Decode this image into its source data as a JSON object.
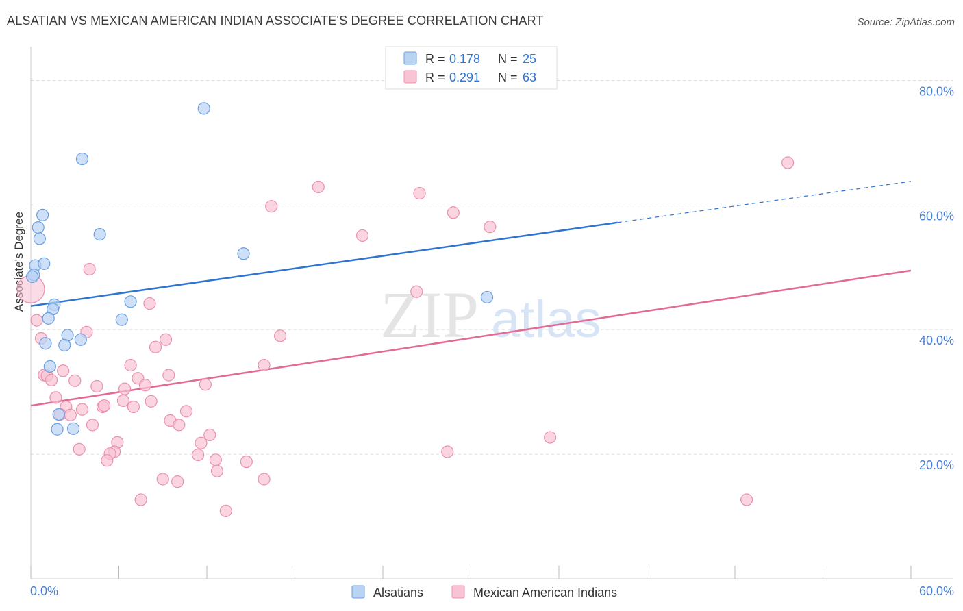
{
  "title": "ALSATIAN VS MEXICAN AMERICAN INDIAN ASSOCIATE'S DEGREE CORRELATION CHART",
  "source": "Source: ZipAtlas.com",
  "watermark": {
    "zip": "ZIP",
    "atlas": "atlas"
  },
  "colors": {
    "blue": "#2f74d0",
    "blue_fill": "#b9d3f3",
    "blue_stroke": "#6a9fe0",
    "pink": "#e26a94",
    "pink_fill": "#f8c3d3",
    "pink_stroke": "#eb8fb0",
    "grid": "#dddddd",
    "tick_label": "#4a7fd6"
  },
  "legend": {
    "row1": {
      "r_label": "R =",
      "r_value": "0.178",
      "n_label": "N =",
      "n_value": "25"
    },
    "row2": {
      "r_label": "R =",
      "r_value": "0.291",
      "n_label": "N =",
      "n_value": "63"
    }
  },
  "chart_data": {
    "type": "scatter",
    "title": "ALSATIAN VS MEXICAN AMERICAN INDIAN ASSOCIATE'S DEGREE CORRELATION CHART",
    "xlabel": "",
    "ylabel": "Associate's Degree",
    "xlim": [
      0,
      60
    ],
    "ylim": [
      0,
      85
    ],
    "x_tick_labels": [
      "0.0%",
      "60.0%"
    ],
    "y_ticks": [
      20,
      40,
      60,
      80
    ],
    "y_tick_labels": [
      "20.0%",
      "40.0%",
      "60.0%",
      "80.0%"
    ],
    "grid": true,
    "legend_position": "top-center",
    "series": [
      {
        "name": "Alsatians",
        "color": "#2f74d0",
        "r": 0.178,
        "n": 25,
        "trend": {
          "x0": 0,
          "y0": 43.8,
          "x1": 40,
          "y1": 57.2,
          "dash_to_x": 60,
          "dash_to_y": 63.8
        },
        "points": [
          [
            11.8,
            75.5
          ],
          [
            3.5,
            67.4
          ],
          [
            0.8,
            58.4
          ],
          [
            0.5,
            56.4
          ],
          [
            0.6,
            54.6
          ],
          [
            4.7,
            55.3
          ],
          [
            14.5,
            52.2
          ],
          [
            0.3,
            50.3
          ],
          [
            0.9,
            50.6
          ],
          [
            0.2,
            48.8
          ],
          [
            1.6,
            44.0
          ],
          [
            1.5,
            43.3
          ],
          [
            6.8,
            44.5
          ],
          [
            1.2,
            41.8
          ],
          [
            6.2,
            41.6
          ],
          [
            2.5,
            39.1
          ],
          [
            3.4,
            38.4
          ],
          [
            1.0,
            37.8
          ],
          [
            2.3,
            37.5
          ],
          [
            1.3,
            34.1
          ],
          [
            31.1,
            45.2
          ],
          [
            1.9,
            26.4
          ],
          [
            1.8,
            24.0
          ],
          [
            2.9,
            24.1
          ],
          [
            0.1,
            48.5
          ]
        ]
      },
      {
        "name": "Mexican American Indians",
        "color": "#e26a94",
        "r": 0.291,
        "n": 63,
        "trend": {
          "x0": 0,
          "y0": 27.8,
          "x1": 60,
          "y1": 49.5
        },
        "points": [
          [
            51.6,
            66.8
          ],
          [
            19.6,
            62.9
          ],
          [
            26.5,
            61.9
          ],
          [
            16.4,
            59.8
          ],
          [
            28.8,
            58.8
          ],
          [
            31.3,
            56.5
          ],
          [
            22.6,
            55.1
          ],
          [
            4.0,
            49.7
          ],
          [
            26.3,
            46.1
          ],
          [
            0.0,
            46.5
          ],
          [
            8.1,
            44.2
          ],
          [
            0.4,
            41.5
          ],
          [
            3.8,
            39.6
          ],
          [
            17.0,
            39.0
          ],
          [
            0.7,
            38.6
          ],
          [
            9.2,
            38.4
          ],
          [
            8.5,
            37.2
          ],
          [
            6.8,
            34.3
          ],
          [
            15.9,
            34.3
          ],
          [
            2.2,
            33.4
          ],
          [
            0.9,
            32.7
          ],
          [
            1.1,
            32.6
          ],
          [
            9.4,
            32.7
          ],
          [
            7.3,
            32.2
          ],
          [
            1.4,
            31.9
          ],
          [
            3.0,
            31.8
          ],
          [
            7.8,
            31.1
          ],
          [
            11.9,
            31.2
          ],
          [
            4.5,
            30.9
          ],
          [
            6.4,
            30.5
          ],
          [
            1.7,
            29.1
          ],
          [
            6.3,
            28.6
          ],
          [
            8.2,
            28.5
          ],
          [
            2.4,
            27.6
          ],
          [
            4.9,
            27.6
          ],
          [
            5.0,
            27.8
          ],
          [
            7.0,
            27.6
          ],
          [
            3.5,
            27.2
          ],
          [
            10.6,
            26.9
          ],
          [
            2.0,
            26.4
          ],
          [
            2.7,
            26.3
          ],
          [
            9.5,
            25.4
          ],
          [
            10.1,
            24.7
          ],
          [
            4.2,
            24.7
          ],
          [
            12.2,
            23.1
          ],
          [
            35.4,
            22.7
          ],
          [
            5.9,
            21.9
          ],
          [
            11.6,
            21.8
          ],
          [
            3.3,
            20.8
          ],
          [
            5.7,
            20.4
          ],
          [
            5.4,
            20.1
          ],
          [
            28.4,
            20.4
          ],
          [
            11.4,
            19.9
          ],
          [
            12.6,
            19.1
          ],
          [
            5.2,
            19.0
          ],
          [
            14.7,
            18.8
          ],
          [
            12.7,
            17.3
          ],
          [
            9.0,
            16.0
          ],
          [
            10.0,
            15.6
          ],
          [
            15.9,
            16.0
          ],
          [
            7.5,
            12.7
          ],
          [
            48.8,
            12.7
          ],
          [
            13.3,
            10.9
          ]
        ]
      }
    ]
  }
}
